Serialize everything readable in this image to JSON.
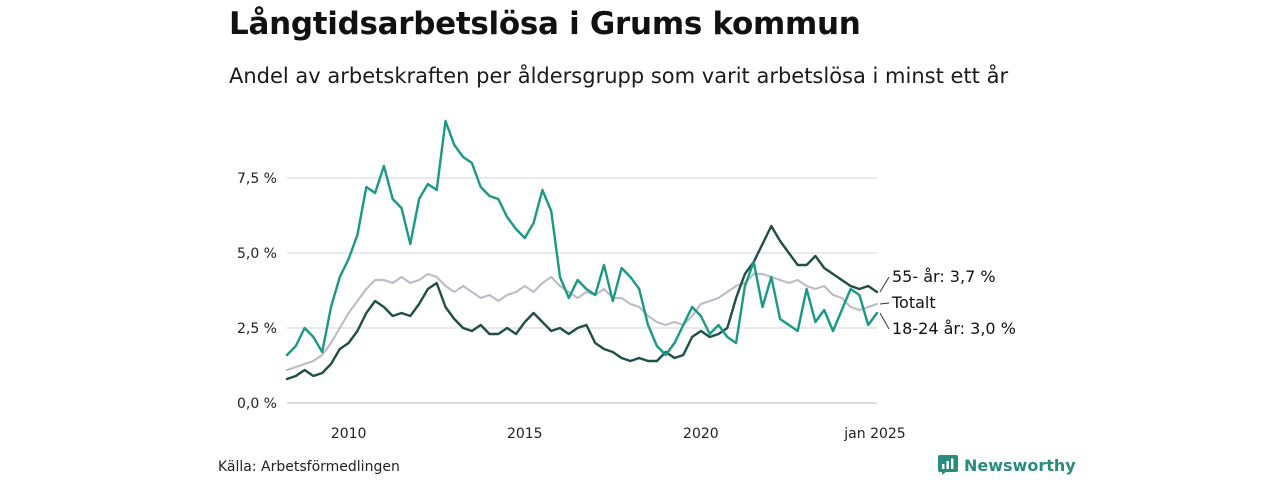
{
  "header": {
    "title": "Långtidsarbetslösa i Grums kommun",
    "subtitle": "Andel av arbetskraften per åldersgrupp som varit arbetslösa i minst ett år"
  },
  "footer": {
    "source": "Källa: Arbetsförmedlingen",
    "brand": "Newsworthy"
  },
  "colors": {
    "youth": "#1a9985",
    "senior": "#1f4f45",
    "total": "#bfbcc7",
    "grid": "#dddddd",
    "brand": "#2a8c7c"
  },
  "chart_data": {
    "type": "line",
    "title": "Långtidsarbetslösa i Grums kommun",
    "subtitle": "Andel av arbetskraften per åldersgrupp som varit arbetslösa i minst ett år",
    "xlabel": "",
    "ylabel": "",
    "xlim": [
      2008.25,
      2025.0
    ],
    "ylim": [
      0,
      10
    ],
    "yticks": [
      {
        "value": 0,
        "label": "0,0 %"
      },
      {
        "value": 2.5,
        "label": "2,5 %"
      },
      {
        "value": 5,
        "label": "5,0 %"
      },
      {
        "value": 7.5,
        "label": "7,5 %"
      }
    ],
    "xticks": [
      {
        "value": 2010,
        "label": "2010"
      },
      {
        "value": 2015,
        "label": "2015"
      },
      {
        "value": 2020,
        "label": "2020"
      },
      {
        "value": 2025,
        "label": "jan 2025"
      }
    ],
    "grid": true,
    "series": [
      {
        "name": "Totalt",
        "key": "total",
        "end_label": "Totalt",
        "points": [
          [
            2008.25,
            1.1
          ],
          [
            2008.5,
            1.2
          ],
          [
            2008.75,
            1.3
          ],
          [
            2009.0,
            1.4
          ],
          [
            2009.25,
            1.6
          ],
          [
            2009.5,
            2.0
          ],
          [
            2009.75,
            2.5
          ],
          [
            2010.0,
            3.0
          ],
          [
            2010.25,
            3.4
          ],
          [
            2010.5,
            3.8
          ],
          [
            2010.75,
            4.1
          ],
          [
            2011.0,
            4.1
          ],
          [
            2011.25,
            4.0
          ],
          [
            2011.5,
            4.2
          ],
          [
            2011.75,
            4.0
          ],
          [
            2012.0,
            4.1
          ],
          [
            2012.25,
            4.3
          ],
          [
            2012.5,
            4.2
          ],
          [
            2012.75,
            3.9
          ],
          [
            2013.0,
            3.7
          ],
          [
            2013.25,
            3.9
          ],
          [
            2013.5,
            3.7
          ],
          [
            2013.75,
            3.5
          ],
          [
            2014.0,
            3.6
          ],
          [
            2014.25,
            3.4
          ],
          [
            2014.5,
            3.6
          ],
          [
            2014.75,
            3.7
          ],
          [
            2015.0,
            3.9
          ],
          [
            2015.25,
            3.7
          ],
          [
            2015.5,
            4.0
          ],
          [
            2015.75,
            4.2
          ],
          [
            2016.0,
            3.9
          ],
          [
            2016.25,
            3.7
          ],
          [
            2016.5,
            3.5
          ],
          [
            2016.75,
            3.7
          ],
          [
            2017.0,
            3.6
          ],
          [
            2017.25,
            3.8
          ],
          [
            2017.5,
            3.5
          ],
          [
            2017.75,
            3.5
          ],
          [
            2018.0,
            3.3
          ],
          [
            2018.25,
            3.2
          ],
          [
            2018.5,
            2.9
          ],
          [
            2018.75,
            2.7
          ],
          [
            2019.0,
            2.6
          ],
          [
            2019.25,
            2.7
          ],
          [
            2019.5,
            2.6
          ],
          [
            2019.75,
            2.9
          ],
          [
            2020.0,
            3.3
          ],
          [
            2020.25,
            3.4
          ],
          [
            2020.5,
            3.5
          ],
          [
            2020.75,
            3.7
          ],
          [
            2021.0,
            3.9
          ],
          [
            2021.25,
            4.0
          ],
          [
            2021.5,
            4.3
          ],
          [
            2021.75,
            4.3
          ],
          [
            2022.0,
            4.2
          ],
          [
            2022.25,
            4.1
          ],
          [
            2022.5,
            4.0
          ],
          [
            2022.75,
            4.1
          ],
          [
            2023.0,
            3.9
          ],
          [
            2023.25,
            3.8
          ],
          [
            2023.5,
            3.9
          ],
          [
            2023.75,
            3.6
          ],
          [
            2024.0,
            3.5
          ],
          [
            2024.25,
            3.2
          ],
          [
            2024.5,
            3.1
          ],
          [
            2024.75,
            3.2
          ],
          [
            2025.0,
            3.3
          ]
        ]
      },
      {
        "name": "55- år",
        "key": "senior",
        "end_label": "55- år: 3,7 %",
        "points": [
          [
            2008.25,
            0.8
          ],
          [
            2008.5,
            0.9
          ],
          [
            2008.75,
            1.1
          ],
          [
            2009.0,
            0.9
          ],
          [
            2009.25,
            1.0
          ],
          [
            2009.5,
            1.3
          ],
          [
            2009.75,
            1.8
          ],
          [
            2010.0,
            2.0
          ],
          [
            2010.25,
            2.4
          ],
          [
            2010.5,
            3.0
          ],
          [
            2010.75,
            3.4
          ],
          [
            2011.0,
            3.2
          ],
          [
            2011.25,
            2.9
          ],
          [
            2011.5,
            3.0
          ],
          [
            2011.75,
            2.9
          ],
          [
            2012.0,
            3.3
          ],
          [
            2012.25,
            3.8
          ],
          [
            2012.5,
            4.0
          ],
          [
            2012.75,
            3.2
          ],
          [
            2013.0,
            2.8
          ],
          [
            2013.25,
            2.5
          ],
          [
            2013.5,
            2.4
          ],
          [
            2013.75,
            2.6
          ],
          [
            2014.0,
            2.3
          ],
          [
            2014.25,
            2.3
          ],
          [
            2014.5,
            2.5
          ],
          [
            2014.75,
            2.3
          ],
          [
            2015.0,
            2.7
          ],
          [
            2015.25,
            3.0
          ],
          [
            2015.5,
            2.7
          ],
          [
            2015.75,
            2.4
          ],
          [
            2016.0,
            2.5
          ],
          [
            2016.25,
            2.3
          ],
          [
            2016.5,
            2.5
          ],
          [
            2016.75,
            2.6
          ],
          [
            2017.0,
            2.0
          ],
          [
            2017.25,
            1.8
          ],
          [
            2017.5,
            1.7
          ],
          [
            2017.75,
            1.5
          ],
          [
            2018.0,
            1.4
          ],
          [
            2018.25,
            1.5
          ],
          [
            2018.5,
            1.4
          ],
          [
            2018.75,
            1.4
          ],
          [
            2019.0,
            1.7
          ],
          [
            2019.25,
            1.5
          ],
          [
            2019.5,
            1.6
          ],
          [
            2019.75,
            2.2
          ],
          [
            2020.0,
            2.4
          ],
          [
            2020.25,
            2.2
          ],
          [
            2020.5,
            2.3
          ],
          [
            2020.75,
            2.5
          ],
          [
            2021.0,
            3.5
          ],
          [
            2021.25,
            4.3
          ],
          [
            2021.5,
            4.7
          ],
          [
            2021.75,
            5.3
          ],
          [
            2022.0,
            5.9
          ],
          [
            2022.25,
            5.4
          ],
          [
            2022.5,
            5.0
          ],
          [
            2022.75,
            4.6
          ],
          [
            2023.0,
            4.6
          ],
          [
            2023.25,
            4.9
          ],
          [
            2023.5,
            4.5
          ],
          [
            2023.75,
            4.3
          ],
          [
            2024.0,
            4.1
          ],
          [
            2024.25,
            3.9
          ],
          [
            2024.5,
            3.8
          ],
          [
            2024.75,
            3.9
          ],
          [
            2025.0,
            3.7
          ]
        ]
      },
      {
        "name": "18-24 år",
        "key": "youth",
        "end_label": "18-24 år: 3,0 %",
        "points": [
          [
            2008.25,
            1.6
          ],
          [
            2008.5,
            1.9
          ],
          [
            2008.75,
            2.5
          ],
          [
            2009.0,
            2.2
          ],
          [
            2009.25,
            1.7
          ],
          [
            2009.5,
            3.2
          ],
          [
            2009.75,
            4.2
          ],
          [
            2010.0,
            4.8
          ],
          [
            2010.25,
            5.6
          ],
          [
            2010.5,
            7.2
          ],
          [
            2010.75,
            7.0
          ],
          [
            2011.0,
            7.9
          ],
          [
            2011.25,
            6.8
          ],
          [
            2011.5,
            6.5
          ],
          [
            2011.75,
            5.3
          ],
          [
            2012.0,
            6.8
          ],
          [
            2012.25,
            7.3
          ],
          [
            2012.5,
            7.1
          ],
          [
            2012.75,
            9.4
          ],
          [
            2013.0,
            8.6
          ],
          [
            2013.25,
            8.2
          ],
          [
            2013.5,
            8.0
          ],
          [
            2013.75,
            7.2
          ],
          [
            2014.0,
            6.9
          ],
          [
            2014.25,
            6.8
          ],
          [
            2014.5,
            6.2
          ],
          [
            2014.75,
            5.8
          ],
          [
            2015.0,
            5.5
          ],
          [
            2015.25,
            6.0
          ],
          [
            2015.5,
            7.1
          ],
          [
            2015.75,
            6.4
          ],
          [
            2016.0,
            4.2
          ],
          [
            2016.25,
            3.5
          ],
          [
            2016.5,
            4.1
          ],
          [
            2016.75,
            3.8
          ],
          [
            2017.0,
            3.6
          ],
          [
            2017.25,
            4.6
          ],
          [
            2017.5,
            3.4
          ],
          [
            2017.75,
            4.5
          ],
          [
            2018.0,
            4.2
          ],
          [
            2018.25,
            3.8
          ],
          [
            2018.5,
            2.6
          ],
          [
            2018.75,
            1.9
          ],
          [
            2019.0,
            1.6
          ],
          [
            2019.25,
            2.0
          ],
          [
            2019.5,
            2.6
          ],
          [
            2019.75,
            3.2
          ],
          [
            2020.0,
            2.9
          ],
          [
            2020.25,
            2.3
          ],
          [
            2020.5,
            2.6
          ],
          [
            2020.75,
            2.2
          ],
          [
            2021.0,
            2.0
          ],
          [
            2021.25,
            3.9
          ],
          [
            2021.5,
            4.7
          ],
          [
            2021.75,
            3.2
          ],
          [
            2022.0,
            4.2
          ],
          [
            2022.25,
            2.8
          ],
          [
            2022.5,
            2.6
          ],
          [
            2022.75,
            2.4
          ],
          [
            2023.0,
            3.8
          ],
          [
            2023.25,
            2.7
          ],
          [
            2023.5,
            3.1
          ],
          [
            2023.75,
            2.4
          ],
          [
            2024.0,
            3.1
          ],
          [
            2024.25,
            3.8
          ],
          [
            2024.5,
            3.6
          ],
          [
            2024.75,
            2.6
          ],
          [
            2025.0,
            3.0
          ]
        ]
      }
    ]
  }
}
